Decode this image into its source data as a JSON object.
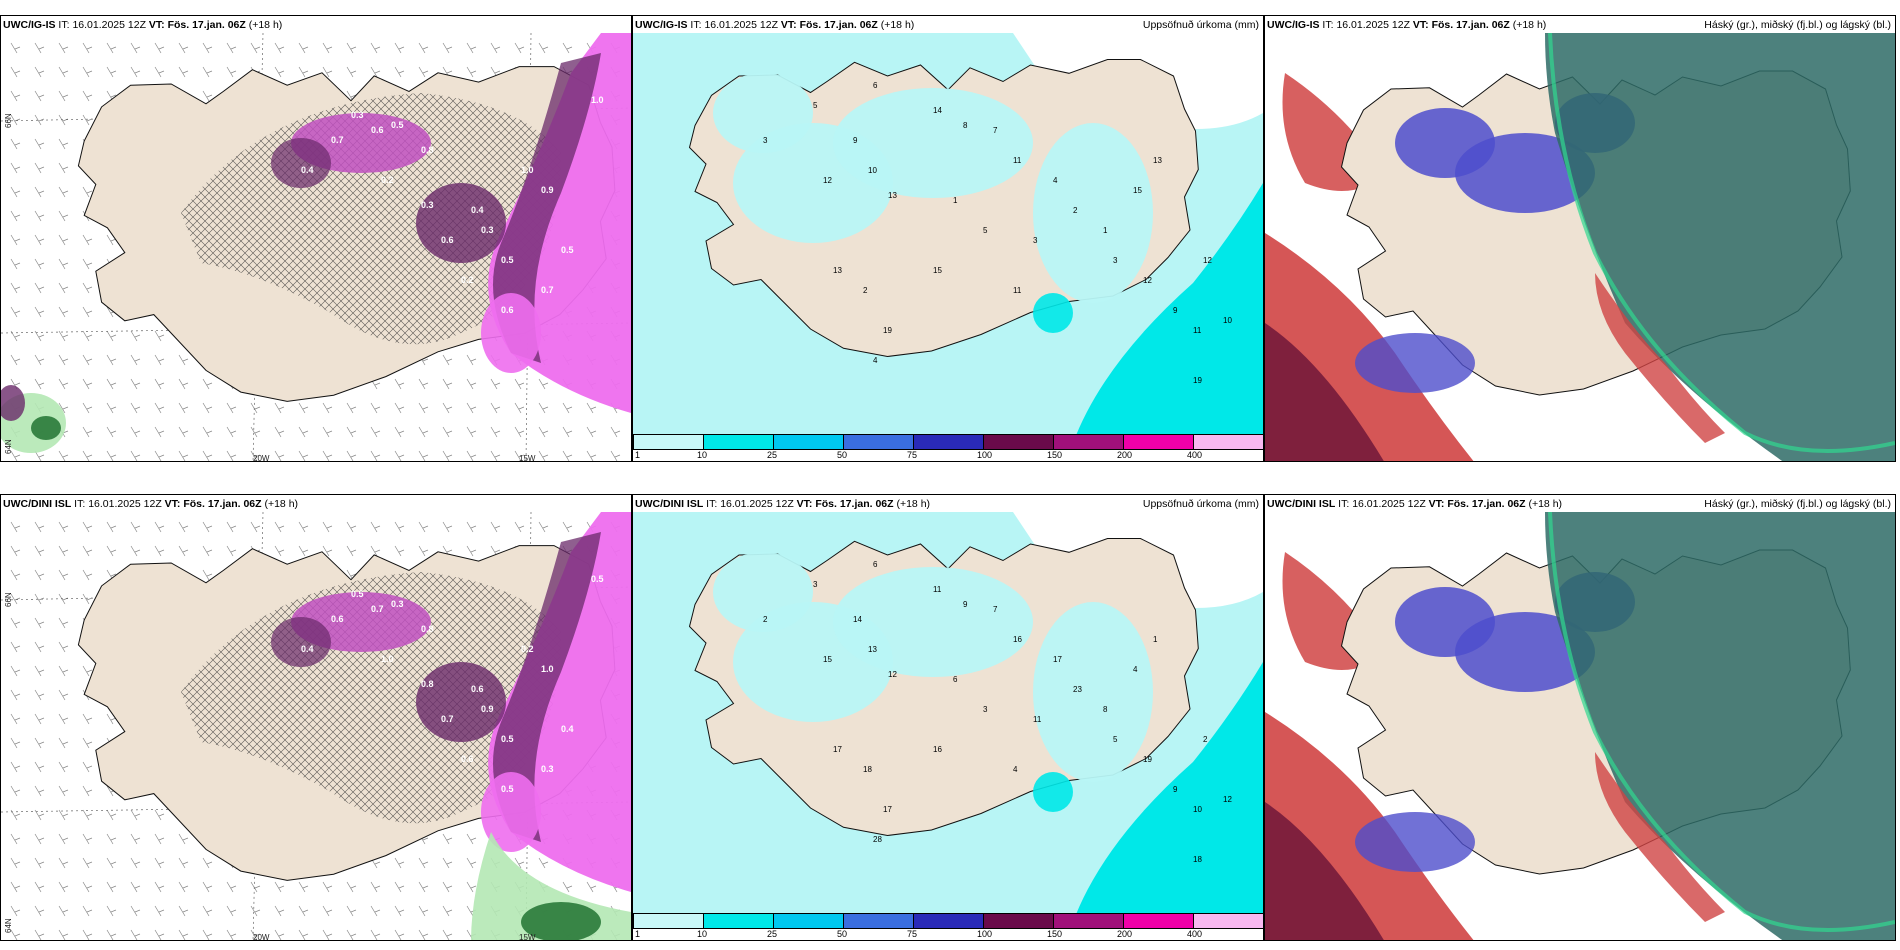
{
  "colors": {
    "land": "#eee2d3",
    "coast": "#111111",
    "purple_light": "#ee6eee",
    "purple_mid": "#c050c0",
    "purple_dark": "#6a2a6a",
    "green_light": "#b4e8b4",
    "green_dark": "#2a7a3a",
    "cyan_light": "#b8f5f5",
    "cyan": "#00e8e8",
    "cloud_high": "#2e6b66",
    "cloud_mid": "#4e4ecc",
    "cloud_low": "#d04444",
    "cloud_low_dark": "#7a1e3c"
  },
  "rows": [
    {
      "model": "UWC/IG-IS",
      "init_prefix": "IT:",
      "init": "16.01.2025 12Z",
      "valid_prefix": "VT:",
      "valid": "Fös. 17.jan. 06Z",
      "lead": "(+18 h)",
      "precip_label": "Uppsöfnuð úrkoma (mm)",
      "cloud_label": "Háský (gr.), miðský (fj.bl.) og lágský (bl.)",
      "snow_values": [
        "0.3",
        "0.6",
        "0.7",
        "0.4",
        "0.5",
        "0.8",
        "1.0",
        "0.9",
        "0.3",
        "0.5",
        "0.2",
        "0.6",
        "0.5",
        "0.7",
        "0.6",
        "0.4",
        "1.0",
        "0.3",
        "0.2"
      ],
      "accum_values": [
        "6",
        "3",
        "5",
        "9",
        "10",
        "12",
        "13",
        "14",
        "8",
        "7",
        "11",
        "4",
        "2",
        "1",
        "3",
        "15",
        "13",
        "12",
        "11",
        "10",
        "9",
        "19",
        "12",
        "15",
        "19",
        "13",
        "2",
        "1",
        "5",
        "3",
        "11",
        "4"
      ]
    },
    {
      "model": "UWC/DINI ISL",
      "init_prefix": "IT:",
      "init": "16.01.2025 12Z",
      "valid_prefix": "VT:",
      "valid": "Fös. 17.jan. 06Z",
      "lead": "(+18 h)",
      "precip_label": "Uppsöfnuð úrkoma (mm)",
      "cloud_label": "Háský (gr.), miðský (fj.bl.) og lágský (bl.)",
      "snow_values": [
        "0.5",
        "0.7",
        "0.6",
        "0.4",
        "0.3",
        "0.8",
        "0.2",
        "1.0",
        "0.9",
        "0.5",
        "0.6",
        "0.7",
        "0.4",
        "0.3",
        "0.5",
        "0.6",
        "0.5",
        "0.8",
        "1.0"
      ],
      "accum_values": [
        "6",
        "2",
        "3",
        "14",
        "13",
        "15",
        "12",
        "11",
        "9",
        "7",
        "16",
        "17",
        "23",
        "8",
        "5",
        "4",
        "1",
        "2",
        "10",
        "12",
        "9",
        "18",
        "19",
        "16",
        "17",
        "17",
        "18",
        "6",
        "3",
        "11",
        "4",
        "28"
      ]
    }
  ],
  "lon_labels": [
    "20W",
    "15W"
  ],
  "lat_labels": [
    "66N",
    "64N"
  ],
  "colorbar": {
    "ticks": [
      "1",
      "10",
      "25",
      "50",
      "75",
      "100",
      "150",
      "200",
      "400"
    ],
    "colors": [
      "#c8f8f8",
      "#00e8e8",
      "#00c8f0",
      "#3a6ee0",
      "#2a2ab8",
      "#6a0a4a",
      "#a0107a",
      "#f000a8",
      "#f8b8f0"
    ]
  }
}
